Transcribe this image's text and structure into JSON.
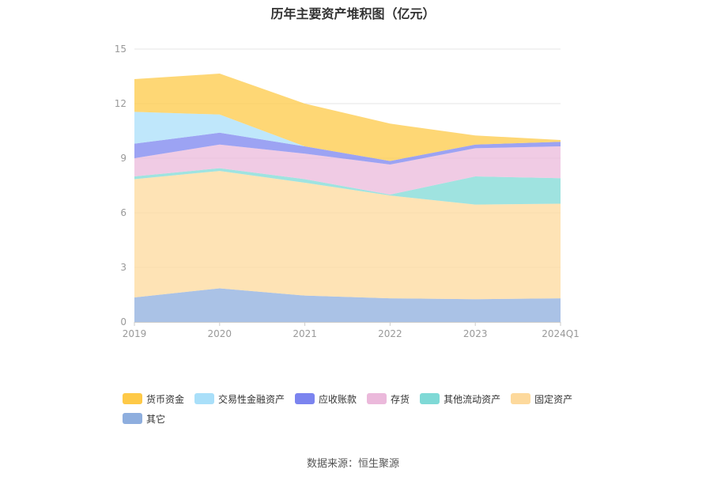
{
  "chart_data": {
    "type": "area",
    "stacked": true,
    "title": "历年主要资产堆积图（亿元）",
    "categories": [
      "2019",
      "2020",
      "2021",
      "2022",
      "2023",
      "2024Q1"
    ],
    "ylim": [
      0,
      15
    ],
    "yticks": [
      0,
      3,
      6,
      9,
      12,
      15
    ],
    "grid": true,
    "legend_position": "bottom",
    "series": [
      {
        "name": "其它",
        "color": "#8eaede",
        "values": [
          1.35,
          1.85,
          1.45,
          1.3,
          1.25,
          1.3
        ]
      },
      {
        "name": "固定资产",
        "color": "#fdd99c",
        "values": [
          6.5,
          6.45,
          6.2,
          5.65,
          5.2,
          5.2
        ]
      },
      {
        "name": "其他流动资产",
        "color": "#7fd9d6",
        "values": [
          0.15,
          0.15,
          0.2,
          0.05,
          1.55,
          1.4
        ]
      },
      {
        "name": "存货",
        "color": "#ebb9db",
        "values": [
          1.0,
          1.3,
          1.4,
          1.65,
          1.55,
          1.75
        ]
      },
      {
        "name": "应收账款",
        "color": "#7b84ef",
        "values": [
          0.8,
          0.65,
          0.4,
          0.2,
          0.2,
          0.25
        ]
      },
      {
        "name": "交易性金融资产",
        "color": "#a9dff9",
        "values": [
          1.75,
          1.0,
          0.0,
          0.0,
          0.0,
          0.0
        ]
      },
      {
        "name": "货币资金",
        "color": "#fec947",
        "values": [
          1.8,
          2.25,
          2.35,
          2.05,
          0.5,
          0.1
        ]
      }
    ]
  },
  "legend_order": [
    6,
    5,
    4,
    3,
    2,
    1,
    0
  ],
  "source_text": "数据来源：恒生聚源"
}
